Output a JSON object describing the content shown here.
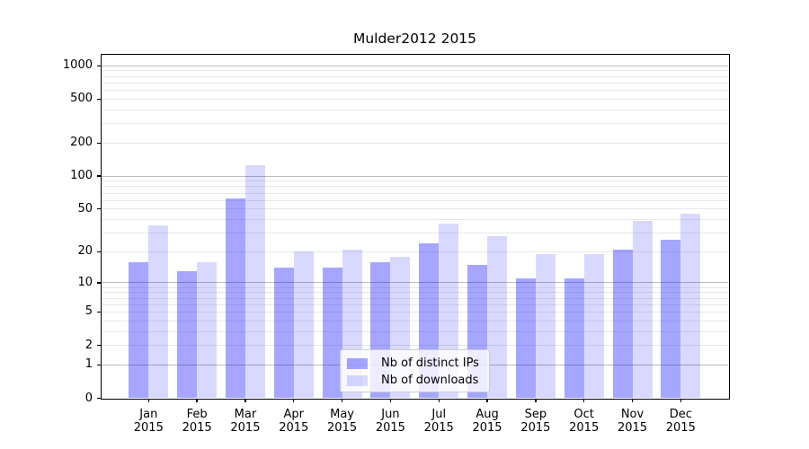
{
  "figure": {
    "title": "Mulder2012 2015"
  },
  "chart_data": {
    "type": "bar",
    "title": "Mulder2012 2015",
    "categories": [
      "Jan 2015",
      "Feb 2015",
      "Mar 2015",
      "Apr 2015",
      "May 2015",
      "Jun 2015",
      "Jul 2015",
      "Aug 2015",
      "Sep 2015",
      "Oct 2015",
      "Nov 2015",
      "Dec 2015"
    ],
    "x_tick_labels": [
      {
        "month": "Jan",
        "year": "2015"
      },
      {
        "month": "Feb",
        "year": "2015"
      },
      {
        "month": "Mar",
        "year": "2015"
      },
      {
        "month": "Apr",
        "year": "2015"
      },
      {
        "month": "May",
        "year": "2015"
      },
      {
        "month": "Jun",
        "year": "2015"
      },
      {
        "month": "Jul",
        "year": "2015"
      },
      {
        "month": "Aug",
        "year": "2015"
      },
      {
        "month": "Sep",
        "year": "2015"
      },
      {
        "month": "Oct",
        "year": "2015"
      },
      {
        "month": "Nov",
        "year": "2015"
      },
      {
        "month": "Dec",
        "year": "2015"
      }
    ],
    "series": [
      {
        "name": "Nb of distinct IPs",
        "color": "rgba(0,0,255,0.35)",
        "color_hex_on_white": "#a6a6ff",
        "values": [
          16,
          13,
          63,
          14,
          14,
          16,
          24,
          15,
          11,
          11,
          21,
          26
        ]
      },
      {
        "name": "Nb of downloads",
        "color": "rgba(0,0,255,0.15)",
        "color_hex_on_white": "#d9d9ff",
        "values": [
          35,
          16,
          125,
          20,
          21,
          18,
          37,
          28,
          19,
          19,
          39,
          45
        ]
      }
    ],
    "xlabel": "",
    "ylabel": "",
    "yscale": "symlog-log1p",
    "yticks": [
      0,
      1,
      2,
      5,
      10,
      20,
      50,
      100,
      200,
      500,
      1000
    ],
    "ylim": [
      0,
      1300
    ],
    "grid": true,
    "legend": {
      "entries": [
        "Nb of distinct IPs",
        "Nb of downloads"
      ],
      "position": "lower center"
    }
  },
  "colors": {
    "bar_distinct_ips": "#a6a6ff",
    "bar_downloads": "#d9d9ff",
    "grid_major": "#bdbdbd",
    "grid_minor": "#e8e8e8",
    "axis": "#000000",
    "text": "#000000",
    "legend_border": "#cccccc",
    "background": "#ffffff"
  }
}
